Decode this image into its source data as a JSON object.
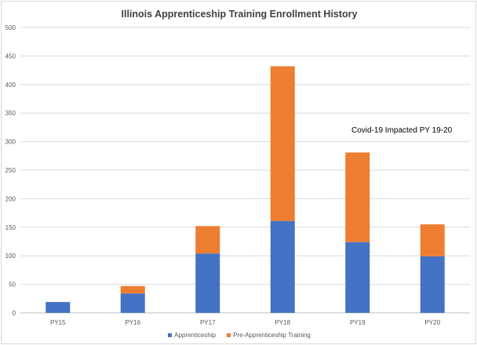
{
  "chart_data": {
    "type": "bar",
    "stacked": true,
    "title": "Illinois Apprenticeship Training Enrollment History",
    "categories": [
      "PY15",
      "PY16",
      "PY17",
      "PY18",
      "PY19",
      "PY20"
    ],
    "series": [
      {
        "name": "Apprenticeship",
        "color": "#4472c4",
        "values": [
          19,
          34,
          104,
          161,
          124,
          99
        ]
      },
      {
        "name": "Pre-Apprenticeship Training",
        "color": "#ed7d31",
        "values": [
          0,
          13,
          48,
          271,
          157,
          56
        ]
      }
    ],
    "y_ticks": [
      "0",
      "50",
      "100",
      "150",
      "200",
      "250",
      "300",
      "350",
      "400",
      "450",
      "500"
    ],
    "ylim": [
      0,
      500
    ],
    "grid": true,
    "legend_position": "bottom",
    "annotations": [
      {
        "text": "Covid-19 Impacted PY 19-20"
      }
    ]
  }
}
